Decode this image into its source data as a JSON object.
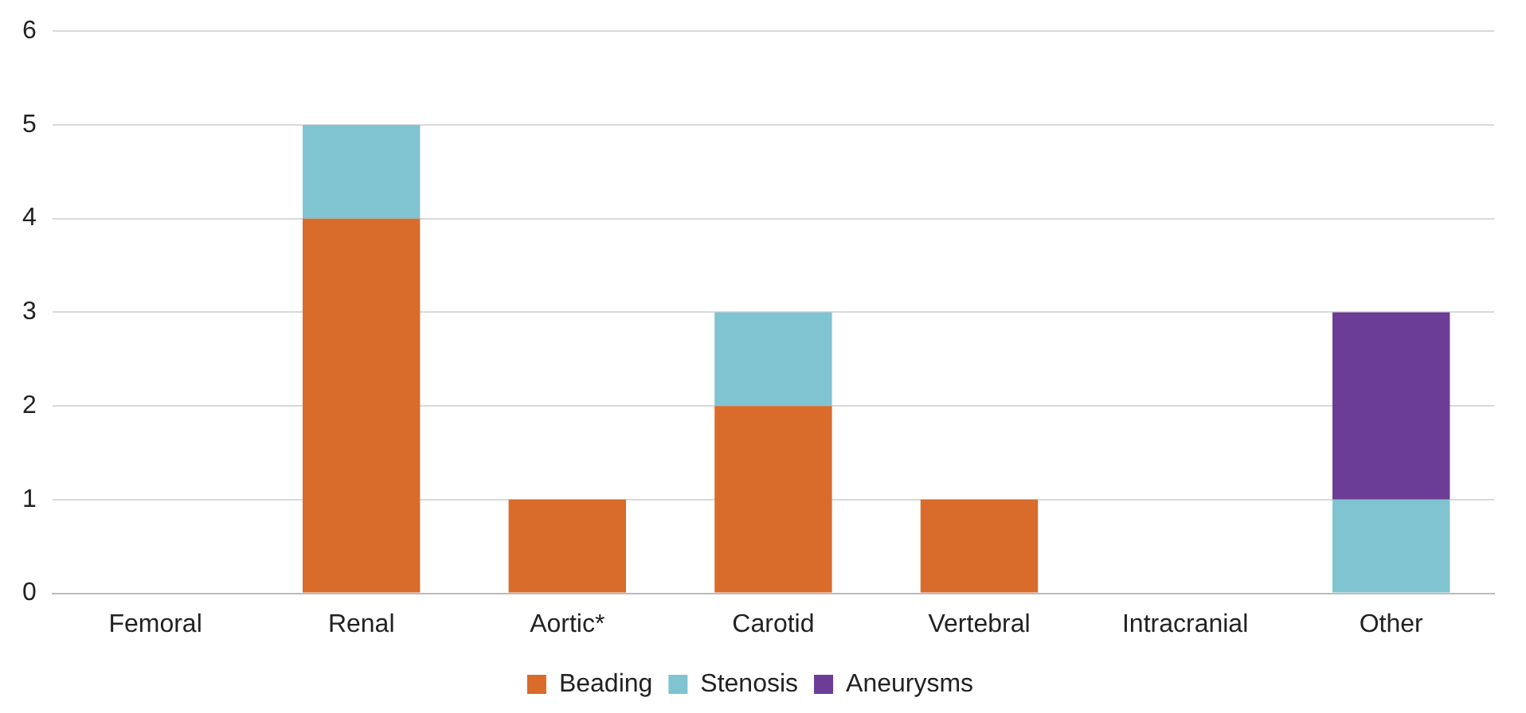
{
  "chart_data": {
    "type": "bar",
    "stacked": true,
    "categories": [
      "Femoral",
      "Renal",
      "Aortic*",
      "Carotid",
      "Vertebral",
      "Intracranial",
      "Other"
    ],
    "series": [
      {
        "name": "Beading",
        "color": "#d96b2b",
        "values": [
          0,
          4,
          1,
          2,
          1,
          0,
          0
        ]
      },
      {
        "name": "Stenosis",
        "color": "#7fc4d0",
        "values": [
          0,
          1,
          0,
          1,
          0,
          0,
          1
        ]
      },
      {
        "name": "Aneurysms",
        "color": "#6b3d96",
        "values": [
          0,
          0,
          0,
          0,
          0,
          0,
          2
        ]
      }
    ],
    "ylim": [
      0,
      6
    ],
    "yticks": [
      0,
      1,
      2,
      3,
      4,
      5,
      6
    ],
    "grid": "y",
    "legend": "bottom"
  }
}
